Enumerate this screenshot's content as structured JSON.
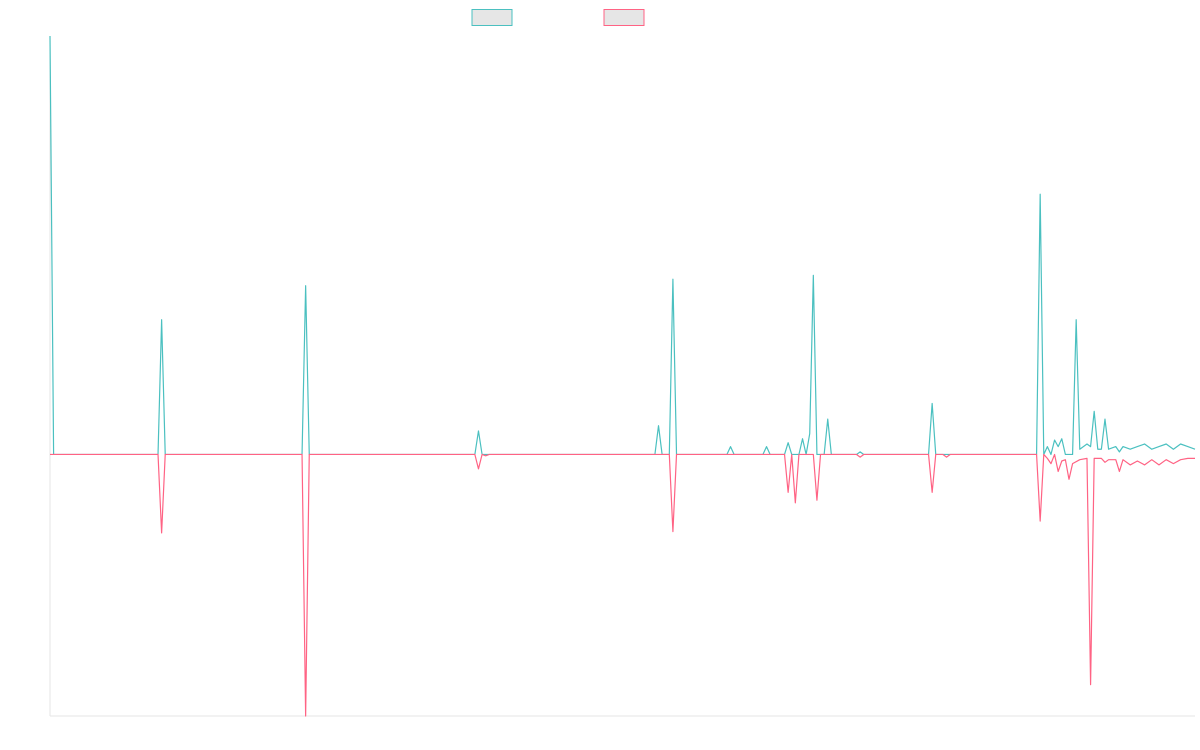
{
  "chart_data": {
    "type": "line",
    "title": "",
    "xlabel": "",
    "ylabel": "",
    "grid": false,
    "legend": "top-center",
    "x_points": 160,
    "ylim": [
      -100,
      160
    ],
    "series": [
      {
        "color": "#4bc0c0",
        "points": [
          [
            0,
            160
          ],
          [
            0.5,
            0
          ],
          [
            15,
            0
          ],
          [
            15.5,
            51.5
          ],
          [
            16,
            0
          ],
          [
            35,
            0
          ],
          [
            35.5,
            64.5
          ],
          [
            36,
            0
          ],
          [
            59,
            0
          ],
          [
            59.5,
            9
          ],
          [
            60,
            0
          ],
          [
            84,
            0
          ],
          [
            84.5,
            11
          ],
          [
            85,
            0
          ],
          [
            86,
            0
          ],
          [
            86.5,
            67
          ],
          [
            87,
            0
          ],
          [
            94,
            0
          ],
          [
            94.5,
            3
          ],
          [
            95,
            0
          ],
          [
            99,
            0
          ],
          [
            99.5,
            3
          ],
          [
            100,
            0
          ],
          [
            102,
            0
          ],
          [
            102.5,
            4.5
          ],
          [
            103,
            0
          ],
          [
            104,
            0
          ],
          [
            104.5,
            6
          ],
          [
            105,
            0
          ],
          [
            105.5,
            8
          ],
          [
            106,
            68.5
          ],
          [
            106.5,
            0
          ],
          [
            107.5,
            0
          ],
          [
            108,
            13.5
          ],
          [
            108.5,
            0
          ],
          [
            112,
            0
          ],
          [
            112.5,
            1
          ],
          [
            113,
            0
          ],
          [
            122,
            0
          ],
          [
            122.5,
            19.5
          ],
          [
            123,
            0
          ],
          [
            137,
            0
          ],
          [
            137.5,
            99.5
          ],
          [
            138,
            0
          ],
          [
            138.5,
            3
          ],
          [
            139,
            0
          ],
          [
            139.5,
            5.5
          ],
          [
            140,
            3
          ],
          [
            140.5,
            6
          ],
          [
            141,
            0
          ],
          [
            142,
            0
          ],
          [
            142.5,
            51.5
          ],
          [
            143,
            2
          ],
          [
            144,
            4
          ],
          [
            144.5,
            3
          ],
          [
            145,
            16.5
          ],
          [
            145.5,
            2
          ],
          [
            146,
            2
          ],
          [
            146.5,
            13.5
          ],
          [
            147,
            2
          ],
          [
            148,
            3
          ],
          [
            148.5,
            1
          ],
          [
            149,
            3
          ],
          [
            150,
            2
          ],
          [
            151,
            3
          ],
          [
            152,
            4
          ],
          [
            153,
            2
          ],
          [
            154,
            3
          ],
          [
            155,
            4
          ],
          [
            156,
            2
          ],
          [
            157,
            4
          ],
          [
            158,
            3
          ],
          [
            159,
            2
          ]
        ]
      },
      {
        "color": "#ff6384",
        "points": [
          [
            0,
            0
          ],
          [
            15,
            0
          ],
          [
            15.5,
            -30
          ],
          [
            16,
            0
          ],
          [
            35,
            0
          ],
          [
            35.5,
            -100
          ],
          [
            36,
            0
          ],
          [
            59,
            0
          ],
          [
            59.5,
            -5.5
          ],
          [
            60,
            0
          ],
          [
            60.5,
            -0.5
          ],
          [
            61,
            0
          ],
          [
            86,
            0
          ],
          [
            86.5,
            -29.5
          ],
          [
            87,
            0
          ],
          [
            102,
            0
          ],
          [
            102.5,
            -14.5
          ],
          [
            103,
            0
          ],
          [
            103.5,
            -18.5
          ],
          [
            104,
            0
          ],
          [
            106,
            0
          ],
          [
            106.5,
            -17.5
          ],
          [
            107,
            0
          ],
          [
            112,
            0
          ],
          [
            112.5,
            -1
          ],
          [
            113,
            0
          ],
          [
            122,
            0
          ],
          [
            122.5,
            -14.5
          ],
          [
            123,
            0
          ],
          [
            124,
            0
          ],
          [
            124.5,
            -1
          ],
          [
            125,
            0
          ],
          [
            137,
            0
          ],
          [
            137.5,
            -25.5
          ],
          [
            138,
            0
          ],
          [
            138.5,
            -1.5
          ],
          [
            139,
            -3.5
          ],
          [
            139.5,
            0
          ],
          [
            140,
            -6.5
          ],
          [
            140.5,
            -2.5
          ],
          [
            141,
            -2
          ],
          [
            141.5,
            -9.5
          ],
          [
            142,
            -3.5
          ],
          [
            143,
            -2
          ],
          [
            144,
            -1.5
          ],
          [
            144.5,
            -88
          ],
          [
            145,
            -1.5
          ],
          [
            146,
            -1.5
          ],
          [
            146.5,
            -3
          ],
          [
            147,
            -2
          ],
          [
            148,
            -2
          ],
          [
            148.5,
            -6.5
          ],
          [
            149,
            -2
          ],
          [
            150,
            -4
          ],
          [
            151,
            -2.5
          ],
          [
            152,
            -4
          ],
          [
            153,
            -2
          ],
          [
            154,
            -4
          ],
          [
            155,
            -2
          ],
          [
            156,
            -3.5
          ],
          [
            157,
            -2
          ],
          [
            158,
            -1.5
          ],
          [
            159,
            -1.5
          ]
        ]
      }
    ]
  }
}
